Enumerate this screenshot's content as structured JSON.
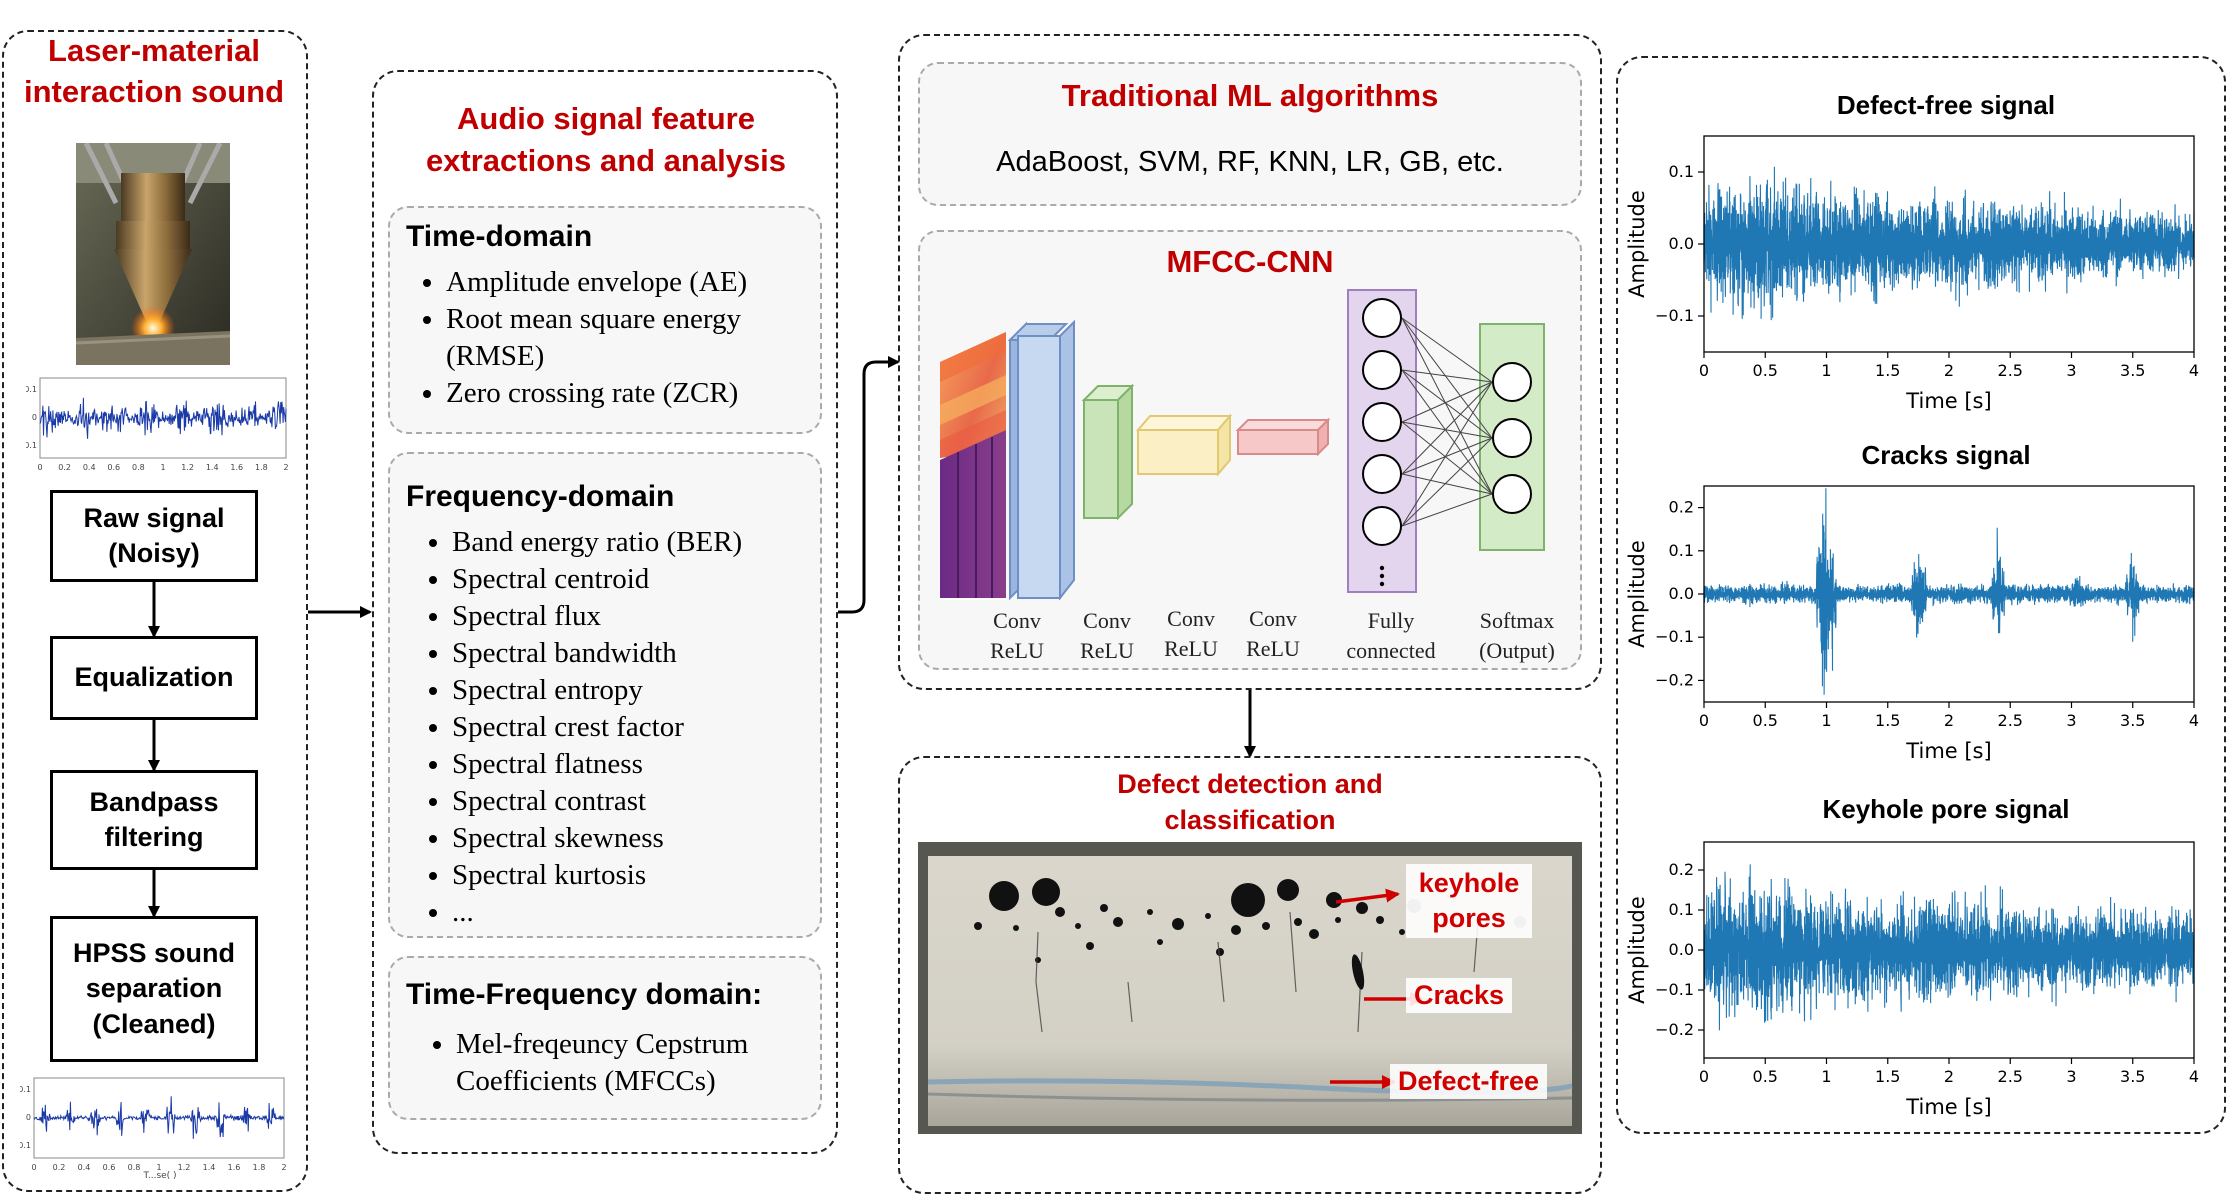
{
  "col1": {
    "title": "Laser-material interaction sound",
    "steps": [
      "Raw signal (Noisy)",
      "Equalization",
      "Bandpass filtering",
      "HPSS sound separation (Cleaned)"
    ],
    "top_signal_ticks_x": [
      "0",
      "0.2",
      "0.4",
      "0.6",
      "0.8",
      "1",
      "1.2",
      "1.4",
      "1.6",
      "1.8",
      "2"
    ],
    "top_signal_ticks_y": [
      "0.1",
      "0",
      "-0.1"
    ],
    "bottom_signal_ticks_x": [
      "0",
      "0.2",
      "0.4",
      "0.6",
      "0.8",
      "1",
      "1.2",
      "1.4",
      "1.6",
      "1.8",
      "2"
    ],
    "bottom_signal_ticks_y": [
      "0.1",
      "0",
      "-0.1"
    ]
  },
  "col2": {
    "title": "Audio signal feature extractions and analysis",
    "time_domain": {
      "heading": "Time-domain",
      "items": [
        "Amplitude envelope (AE)",
        "Root mean square energy (RMSE)",
        "Zero crossing rate (ZCR)"
      ]
    },
    "freq_domain": {
      "heading": "Frequency-domain",
      "items": [
        "Band energy ratio (BER)",
        "Spectral centroid",
        "Spectral flux",
        "Spectral bandwidth",
        "Spectral entropy",
        "Spectral crest factor",
        "Spectral flatness",
        "Spectral contrast",
        "Spectral skewness",
        "Spectral kurtosis",
        "..."
      ]
    },
    "tf_domain": {
      "heading": "Time-Frequency domain:",
      "items": [
        "Mel-freqeuncy Cepstrum Coefficients (MFCCs)"
      ]
    }
  },
  "col3": {
    "ml_title": "Traditional ML algorithms",
    "ml_list": "AdaBoost, SVM, RF, KNN, LR, GB, etc.",
    "cnn_title": "MFCC-CNN",
    "cnn_layers": [
      {
        "line1": "Conv",
        "line2": "ReLU"
      },
      {
        "line1": "Conv",
        "line2": "ReLU"
      },
      {
        "line1": "Conv",
        "line2": "ReLU"
      },
      {
        "line1": "Conv",
        "line2": "ReLU"
      },
      {
        "line1": "Fully",
        "line2": "connected"
      },
      {
        "line1": "Softmax",
        "line2": "(Output)"
      }
    ],
    "cnn_colors": {
      "layer1": "#c7d9f0",
      "layer2": "#d3ebc6",
      "layer3": "#fbf0c5",
      "layer4": "#f7c8c8",
      "fc": "#e3d5ee",
      "softmax": "#d3ebc6"
    },
    "defect_title": "Defect detection and classification",
    "defect_labels": [
      "keyhole pores",
      "Cracks",
      "Defect-free"
    ]
  },
  "chart_data": [
    {
      "type": "line",
      "title": "Defect-free signal",
      "xlabel": "Time [s]",
      "ylabel": "Amplitude",
      "xlim": [
        0,
        4
      ],
      "ylim": [
        -0.15,
        0.15
      ],
      "xticks": [
        "0",
        "0.5",
        "1",
        "1.5",
        "2",
        "2.5",
        "3",
        "3.5",
        "4"
      ],
      "yticks": [
        "0.1",
        "0.0",
        "−0.1"
      ],
      "color": "#1f77b4",
      "envelope": {
        "t": [
          0,
          0.5,
          1,
          1.5,
          2,
          2.5,
          3,
          3.5,
          4
        ],
        "amp": [
          0.07,
          0.085,
          0.07,
          0.065,
          0.06,
          0.055,
          0.05,
          0.045,
          0.04
        ]
      },
      "bursts": []
    },
    {
      "type": "line",
      "title": "Cracks signal",
      "xlabel": "Time [s]",
      "ylabel": "Amplitude",
      "xlim": [
        0,
        4
      ],
      "ylim": [
        -0.25,
        0.25
      ],
      "xticks": [
        "0",
        "0.5",
        "1",
        "1.5",
        "2",
        "2.5",
        "3",
        "3.5",
        "4"
      ],
      "yticks": [
        "0.2",
        "0.1",
        "0.0",
        "−0.1",
        "−0.2"
      ],
      "color": "#1f77b4",
      "envelope": {
        "t": [
          0,
          4
        ],
        "amp": [
          0.02,
          0.02
        ]
      },
      "bursts": [
        {
          "t": 1.0,
          "width": 0.08,
          "amp": 0.21
        },
        {
          "t": 1.75,
          "width": 0.06,
          "amp": 0.13
        },
        {
          "t": 2.4,
          "width": 0.06,
          "amp": 0.12
        },
        {
          "t": 3.05,
          "width": 0.05,
          "amp": 0.05
        },
        {
          "t": 3.5,
          "width": 0.05,
          "amp": 0.09
        }
      ]
    },
    {
      "type": "line",
      "title": "Keyhole pore signal",
      "xlabel": "Time [s]",
      "ylabel": "Amplitude",
      "xlim": [
        0,
        4
      ],
      "ylim": [
        -0.27,
        0.27
      ],
      "xticks": [
        "0",
        "0.5",
        "1",
        "1.5",
        "2",
        "2.5",
        "3",
        "3.5",
        "4"
      ],
      "yticks": [
        "0.2",
        "0.1",
        "0.0",
        "−0.1",
        "−0.2"
      ],
      "color": "#1f77b4",
      "envelope": {
        "t": [
          0,
          0.5,
          1,
          1.5,
          2,
          2.5,
          3,
          3.5,
          4
        ],
        "amp": [
          0.15,
          0.16,
          0.13,
          0.12,
          0.12,
          0.11,
          0.1,
          0.1,
          0.08
        ]
      },
      "bursts": []
    }
  ]
}
